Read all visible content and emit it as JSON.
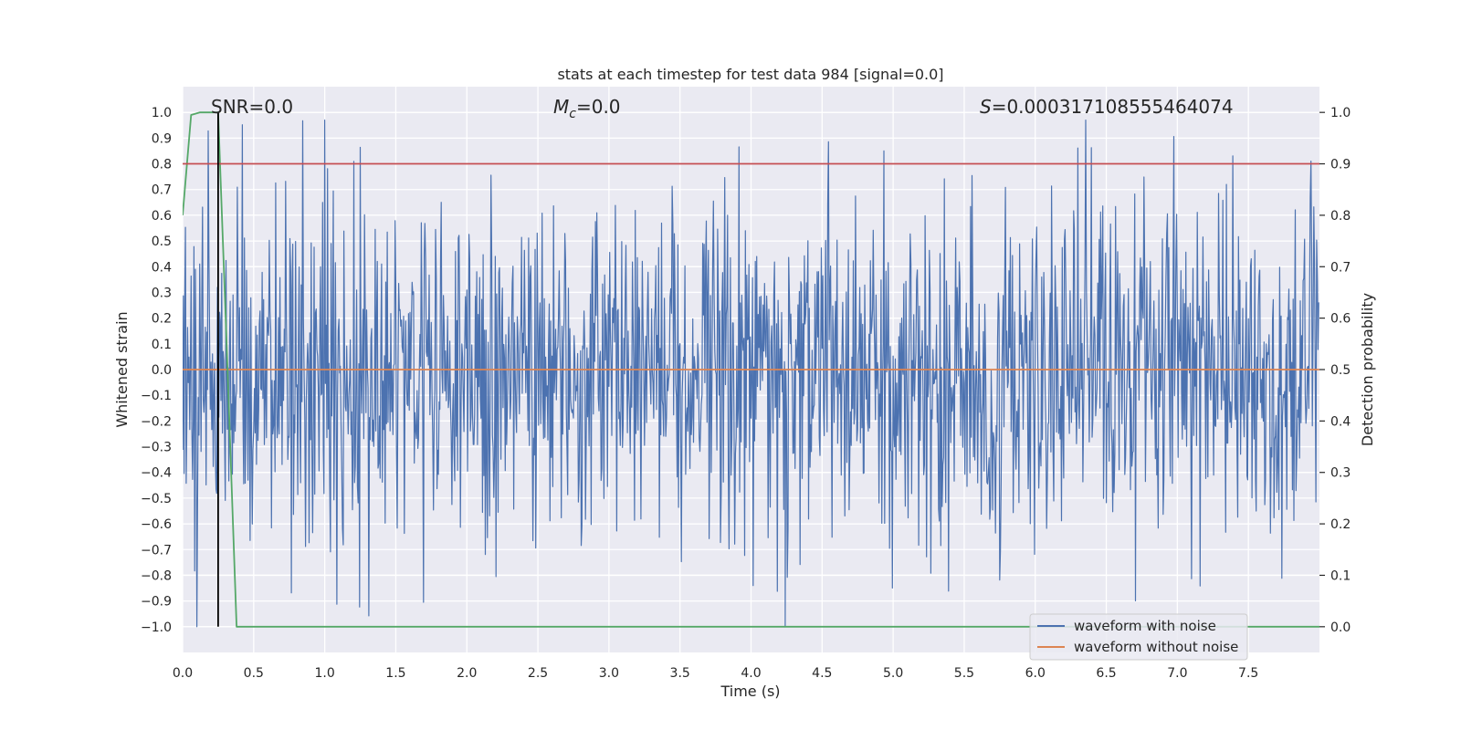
{
  "chart_data": {
    "type": "line",
    "title": "stats at each timestep for test data 984 [signal=0.0]",
    "xlabel": "Time (s)",
    "ylabel": "Whitened strain",
    "y2label": "Detection probability",
    "xlim": [
      0.0,
      8.0
    ],
    "ylim": [
      -1.1,
      1.1
    ],
    "y2lim": [
      -0.05,
      1.05
    ],
    "xticks": [
      0.0,
      0.5,
      1.0,
      1.5,
      2.0,
      2.5,
      3.0,
      3.5,
      4.0,
      4.5,
      5.0,
      5.5,
      6.0,
      6.5,
      7.0,
      7.5
    ],
    "xtick_labels": [
      "0.0",
      "0.5",
      "1.0",
      "1.5",
      "2.0",
      "2.5",
      "3.0",
      "3.5",
      "4.0",
      "4.5",
      "5.0",
      "5.5",
      "6.0",
      "6.5",
      "7.0",
      "7.5"
    ],
    "yticks": [
      1.0,
      0.9,
      0.8,
      0.7,
      0.6,
      0.5,
      0.4,
      0.3,
      0.2,
      0.1,
      0.0,
      -0.1,
      -0.2,
      -0.3,
      -0.4,
      -0.5,
      -0.6,
      -0.7,
      -0.8,
      -0.9,
      -1.0
    ],
    "ytick_labels": [
      "1.0",
      "0.9",
      "0.8",
      "0.7",
      "0.6",
      "0.5",
      "0.4",
      "0.3",
      "0.2",
      "0.1",
      "0.0",
      "−0.1",
      "−0.2",
      "−0.3",
      "−0.4",
      "−0.5",
      "−0.6",
      "−0.7",
      "−0.8",
      "−0.9",
      "−1.0"
    ],
    "y2ticks": [
      1.0,
      0.9,
      0.8,
      0.7,
      0.6,
      0.5,
      0.4,
      0.3,
      0.2,
      0.1,
      0.0
    ],
    "y2tick_labels": [
      "1.0",
      "0.9",
      "0.8",
      "0.7",
      "0.6",
      "0.5",
      "0.4",
      "0.3",
      "0.2",
      "0.1",
      "0.0"
    ],
    "annotations": {
      "snr": "SNR=0.0",
      "mc_symbol": "M",
      "mc_subscript": "c",
      "mc_value": "=0.0",
      "s_symbol": "S",
      "s_value": "=0.000317108555464074"
    },
    "legend": {
      "position": "lower-right",
      "entries": [
        {
          "label": "waveform with noise",
          "color": "#4c72b0"
        },
        {
          "label": "waveform without noise",
          "color": "#dd8452"
        }
      ]
    },
    "series": [
      {
        "name": "waveform with noise",
        "axis": "left",
        "color": "#4c72b0",
        "noise": {
          "duration": 8.0,
          "samples": 1600,
          "typical_amplitude": 0.45,
          "min": -1.0,
          "max": 0.97,
          "seed": 984
        }
      },
      {
        "name": "waveform without noise",
        "axis": "left",
        "color": "#dd8452",
        "x": [
          0.0,
          8.0
        ],
        "y": [
          0.0,
          0.0
        ]
      },
      {
        "name": "detection probability",
        "axis": "right",
        "color": "#55a868",
        "x": [
          0.0,
          0.06,
          0.12,
          0.18,
          0.25,
          0.31,
          0.38,
          8.0
        ],
        "y": [
          0.8,
          0.995,
          1.0,
          1.0,
          1.0,
          0.55,
          0.0,
          0.0
        ]
      },
      {
        "name": "threshold",
        "axis": "right",
        "color": "#c44e52",
        "x": [
          0.0,
          8.0
        ],
        "y": [
          0.9,
          0.9
        ]
      },
      {
        "name": "detection marker",
        "axis": "left",
        "color": "#000000",
        "x": [
          0.25,
          0.25
        ],
        "y": [
          -1.0,
          1.0
        ]
      }
    ]
  }
}
